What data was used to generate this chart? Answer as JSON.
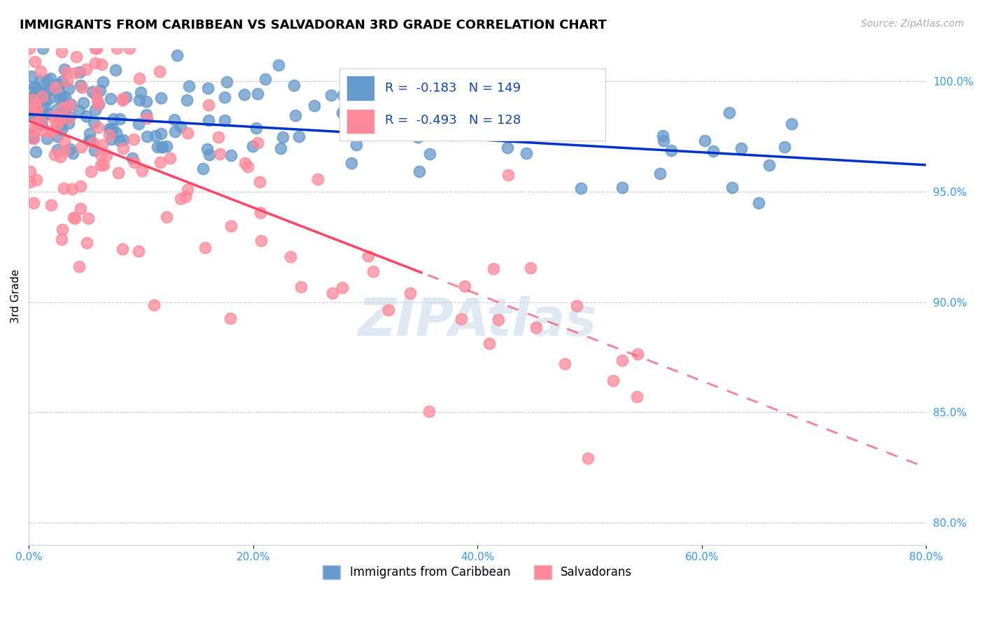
{
  "title": "IMMIGRANTS FROM CARIBBEAN VS SALVADORAN 3RD GRADE CORRELATION CHART",
  "source": "Source: ZipAtlas.com",
  "ylabel": "3rd Grade",
  "right_yticks": [
    100.0,
    95.0,
    90.0,
    85.0,
    80.0
  ],
  "right_ytick_labels": [
    "100.0%",
    "95.0%",
    "90.0%",
    "85.0%",
    "80.0%"
  ],
  "xmin": 0.0,
  "xmax": 80.0,
  "ymin": 79.0,
  "ymax": 101.5,
  "blue_R": -0.183,
  "blue_N": 149,
  "pink_R": -0.493,
  "pink_N": 128,
  "blue_color": "#6699cc",
  "pink_color": "#ff8899",
  "blue_line_color": "#0033cc",
  "pink_line_color": "#ff4466",
  "blue_trend_x": [
    0.0,
    80.0
  ],
  "blue_trend_y": [
    98.5,
    96.2
  ],
  "pink_trend_x": [
    0.0,
    80.0
  ],
  "pink_trend_y": [
    98.2,
    82.5
  ],
  "watermark": "ZIPAtlas",
  "legend_blue_label": "Immigrants from Caribbean",
  "legend_pink_label": "Salvadorans",
  "title_fontsize": 13,
  "source_fontsize": 10,
  "tick_label_color": "#3399ff",
  "grid_color": "#cccccc"
}
